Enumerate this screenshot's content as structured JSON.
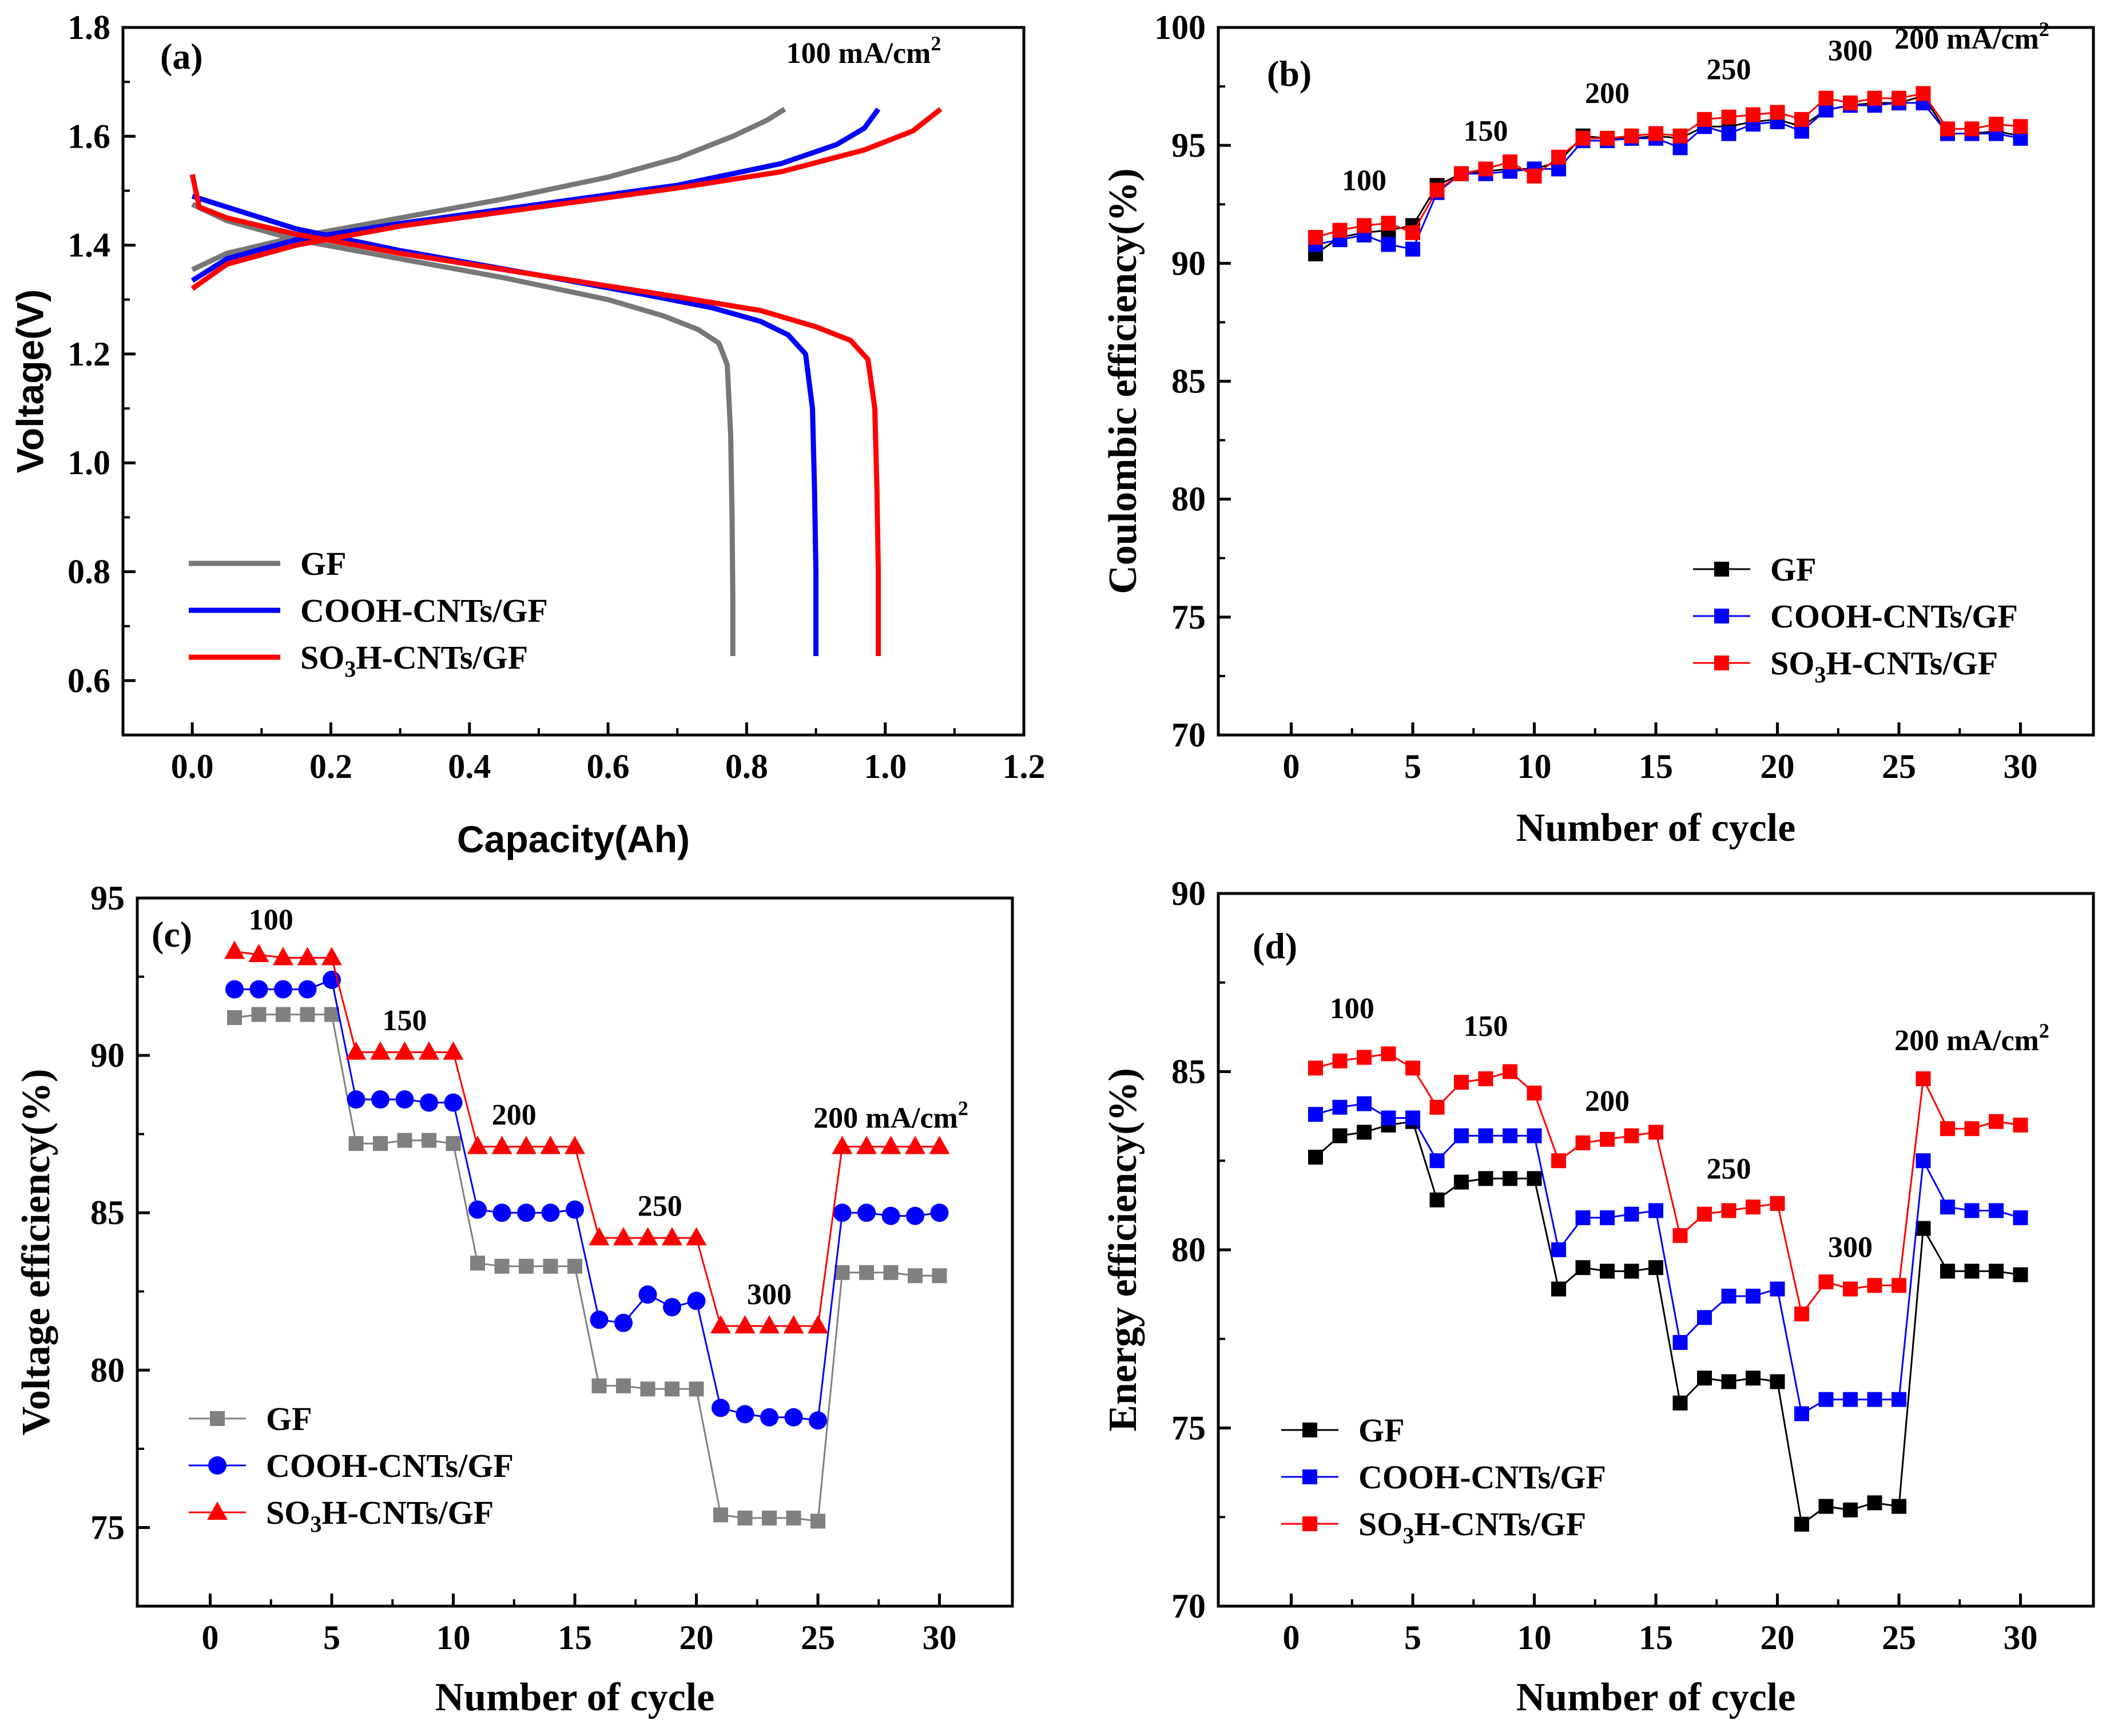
{
  "colors": {
    "GF": "#000000",
    "GF_a": "#777777",
    "GF_c": "#808080",
    "COOH": "#0000ff",
    "SO3H": "#ff0000"
  },
  "chart_data": [
    {
      "id": "a",
      "type": "line",
      "panel_label": "(a)",
      "xlabel": "Capacity(Ah)",
      "ylabel": "Voltage(V)",
      "xlim": [
        -0.1,
        1.2
      ],
      "ylim": [
        0.5,
        1.8
      ],
      "xticks": [
        "0.0",
        "0.2",
        "0.4",
        "0.6",
        "0.8",
        "1.0",
        "1.2"
      ],
      "yticks": [
        "0.6",
        "0.8",
        "1.0",
        "1.2",
        "1.4",
        "1.6",
        "1.8"
      ],
      "annotations": [
        {
          "text": "100 mA/cm",
          "sup": "2"
        }
      ],
      "legend": [
        "GF",
        "COOH-CNTs/GF",
        "SO3H-CNTs/GF"
      ],
      "series": [
        {
          "name": "GF",
          "color_key": "GF_a",
          "segments": [
            [
              [
                0,
                1.355
              ],
              [
                0.05,
                1.385
              ],
              [
                0.15,
                1.415
              ],
              [
                0.3,
                1.45
              ],
              [
                0.45,
                1.485
              ],
              [
                0.6,
                1.525
              ],
              [
                0.7,
                1.56
              ],
              [
                0.78,
                1.6
              ],
              [
                0.83,
                1.63
              ],
              [
                0.855,
                1.65
              ]
            ],
            [
              [
                0,
                1.475
              ],
              [
                0.05,
                1.445
              ],
              [
                0.15,
                1.41
              ],
              [
                0.3,
                1.375
              ],
              [
                0.45,
                1.34
              ],
              [
                0.6,
                1.3
              ],
              [
                0.68,
                1.27
              ],
              [
                0.73,
                1.245
              ],
              [
                0.76,
                1.22
              ],
              [
                0.772,
                1.18
              ],
              [
                0.777,
                1.05
              ],
              [
                0.779,
                0.9
              ],
              [
                0.78,
                0.75
              ],
              [
                0.78,
                0.645
              ]
            ]
          ]
        },
        {
          "name": "COOH-CNTs/GF",
          "color_key": "COOH",
          "segments": [
            [
              [
                0,
                1.335
              ],
              [
                0.05,
                1.375
              ],
              [
                0.15,
                1.41
              ],
              [
                0.3,
                1.44
              ],
              [
                0.5,
                1.475
              ],
              [
                0.7,
                1.51
              ],
              [
                0.85,
                1.55
              ],
              [
                0.93,
                1.585
              ],
              [
                0.97,
                1.615
              ],
              [
                0.99,
                1.65
              ]
            ],
            [
              [
                0,
                1.49
              ],
              [
                0.05,
                1.47
              ],
              [
                0.15,
                1.43
              ],
              [
                0.3,
                1.39
              ],
              [
                0.5,
                1.345
              ],
              [
                0.65,
                1.31
              ],
              [
                0.75,
                1.285
              ],
              [
                0.82,
                1.26
              ],
              [
                0.86,
                1.235
              ],
              [
                0.885,
                1.2
              ],
              [
                0.895,
                1.1
              ],
              [
                0.898,
                0.95
              ],
              [
                0.9,
                0.8
              ],
              [
                0.9,
                0.645
              ]
            ]
          ]
        },
        {
          "name": "SO3H-CNTs/GF",
          "color_key": "SO3H",
          "segments": [
            [
              [
                0,
                1.32
              ],
              [
                0.05,
                1.365
              ],
              [
                0.15,
                1.4
              ],
              [
                0.3,
                1.435
              ],
              [
                0.5,
                1.47
              ],
              [
                0.7,
                1.505
              ],
              [
                0.85,
                1.535
              ],
              [
                0.97,
                1.575
              ],
              [
                1.04,
                1.61
              ],
              [
                1.08,
                1.65
              ]
            ],
            [
              [
                0,
                1.53
              ],
              [
                0.01,
                1.47
              ],
              [
                0.05,
                1.45
              ],
              [
                0.15,
                1.42
              ],
              [
                0.3,
                1.385
              ],
              [
                0.5,
                1.345
              ],
              [
                0.7,
                1.305
              ],
              [
                0.82,
                1.28
              ],
              [
                0.9,
                1.25
              ],
              [
                0.95,
                1.225
              ],
              [
                0.975,
                1.19
              ],
              [
                0.985,
                1.1
              ],
              [
                0.988,
                0.95
              ],
              [
                0.99,
                0.8
              ],
              [
                0.99,
                0.645
              ]
            ]
          ]
        }
      ]
    },
    {
      "id": "b",
      "type": "line",
      "panel_label": "(b)",
      "xlabel": "Number of cycle",
      "ylabel": "Coulombic efficiency(%)",
      "xlim": [
        -3,
        33
      ],
      "ylim": [
        70,
        100
      ],
      "xticks": [
        "0",
        "5",
        "10",
        "15",
        "20",
        "25",
        "30"
      ],
      "yticks": [
        "70",
        "75",
        "80",
        "85",
        "90",
        "95",
        "100"
      ],
      "annotations": [
        {
          "text": "100",
          "x": 3,
          "y": 93.1
        },
        {
          "text": "150",
          "x": 8,
          "y": 95.2
        },
        {
          "text": "200",
          "x": 13,
          "y": 96.8
        },
        {
          "text": "250",
          "x": 18,
          "y": 97.8
        },
        {
          "text": "300",
          "x": 23,
          "y": 98.6
        },
        {
          "text": "200 mA/cm",
          "sup": "2",
          "x": 28,
          "y": 99.1
        }
      ],
      "legend": [
        "GF",
        "COOH-CNTs/GF",
        "SO3H-CNTs/GF"
      ],
      "x": [
        1,
        2,
        3,
        4,
        5,
        6,
        7,
        8,
        9,
        10,
        11,
        12,
        13,
        14,
        15,
        16,
        17,
        18,
        19,
        20,
        21,
        22,
        23,
        24,
        25,
        26,
        27,
        28,
        29,
        30
      ],
      "series": [
        {
          "name": "GF",
          "color_key": "GF",
          "values": [
            90.4,
            91.1,
            91.3,
            91.4,
            91.6,
            93.3,
            93.8,
            93.9,
            94.0,
            94.0,
            94.3,
            95.4,
            95.3,
            95.3,
            95.4,
            95.3,
            95.8,
            95.8,
            96.0,
            96.1,
            95.8,
            96.5,
            96.7,
            96.8,
            96.8,
            97.1,
            95.5,
            95.5,
            95.6,
            95.4
          ],
          "marker": "square"
        },
        {
          "name": "COOH-CNTs/GF",
          "color_key": "COOH",
          "values": [
            90.8,
            91.0,
            91.2,
            90.8,
            90.6,
            93.0,
            93.8,
            93.8,
            93.9,
            94.0,
            94.0,
            95.2,
            95.2,
            95.3,
            95.3,
            94.9,
            95.8,
            95.5,
            95.9,
            96.0,
            95.6,
            96.5,
            96.7,
            96.7,
            96.8,
            96.8,
            95.5,
            95.5,
            95.5,
            95.3
          ],
          "marker": "square"
        },
        {
          "name": "SO3H-CNTs/GF",
          "color_key": "SO3H",
          "values": [
            91.1,
            91.4,
            91.6,
            91.7,
            91.3,
            93.1,
            93.8,
            94.0,
            94.3,
            93.7,
            94.5,
            95.3,
            95.3,
            95.4,
            95.5,
            95.4,
            96.1,
            96.2,
            96.3,
            96.4,
            96.1,
            97.0,
            96.8,
            97.0,
            97.0,
            97.2,
            95.7,
            95.7,
            95.9,
            95.8
          ],
          "marker": "square"
        }
      ]
    },
    {
      "id": "c",
      "type": "line",
      "panel_label": "(c)",
      "xlabel": "Number of cycle",
      "ylabel": "Voltage efficiency(%)",
      "xlim": [
        -3,
        33
      ],
      "ylim": [
        72.5,
        95
      ],
      "xticks": [
        "0",
        "5",
        "10",
        "15",
        "20",
        "25",
        "30"
      ],
      "yticks": [
        "75",
        "80",
        "85",
        "90",
        "95"
      ],
      "annotations": [
        {
          "text": "100",
          "x": 2.5,
          "y": 94.0
        },
        {
          "text": "150",
          "x": 8,
          "y": 90.8
        },
        {
          "text": "200",
          "x": 12.5,
          "y": 87.8
        },
        {
          "text": "250",
          "x": 18.5,
          "y": 84.9
        },
        {
          "text": "300",
          "x": 23,
          "y": 82.1
        },
        {
          "text": "200 mA/cm",
          "sup": "2",
          "x": 28,
          "y": 87.7
        }
      ],
      "legend": [
        "GF",
        "COOH-CNTs/GF",
        "SO3H-CNTs/GF"
      ],
      "x": [
        1,
        2,
        3,
        4,
        5,
        6,
        7,
        8,
        9,
        10,
        11,
        12,
        13,
        14,
        15,
        16,
        17,
        18,
        19,
        20,
        21,
        22,
        23,
        24,
        25,
        26,
        27,
        28,
        29,
        30
      ],
      "series": [
        {
          "name": "GF",
          "color_key": "GF_c",
          "values": [
            91.2,
            91.3,
            91.3,
            91.3,
            91.3,
            87.2,
            87.2,
            87.3,
            87.3,
            87.2,
            83.4,
            83.3,
            83.3,
            83.3,
            83.3,
            79.5,
            79.5,
            79.4,
            79.4,
            79.4,
            75.4,
            75.3,
            75.3,
            75.3,
            75.2,
            83.1,
            83.1,
            83.1,
            83.0,
            83.0
          ],
          "marker": "square"
        },
        {
          "name": "COOH-CNTs/GF",
          "color_key": "COOH",
          "values": [
            92.1,
            92.1,
            92.1,
            92.1,
            92.4,
            88.6,
            88.6,
            88.6,
            88.5,
            88.5,
            85.1,
            85.0,
            85.0,
            85.0,
            85.1,
            81.6,
            81.5,
            82.4,
            82.0,
            82.2,
            78.8,
            78.6,
            78.5,
            78.5,
            78.4,
            85.0,
            85.0,
            84.9,
            84.9,
            85.0
          ],
          "marker": "circle"
        },
        {
          "name": "SO3H-CNTs/GF",
          "color_key": "SO3H",
          "values": [
            93.3,
            93.2,
            93.1,
            93.1,
            93.1,
            90.1,
            90.1,
            90.1,
            90.1,
            90.1,
            87.1,
            87.1,
            87.1,
            87.1,
            87.1,
            84.2,
            84.2,
            84.2,
            84.2,
            84.2,
            81.4,
            81.4,
            81.4,
            81.4,
            81.4,
            87.1,
            87.1,
            87.1,
            87.1,
            87.1
          ],
          "marker": "triangle"
        }
      ]
    },
    {
      "id": "d",
      "type": "line",
      "panel_label": "(d)",
      "xlabel": "Number of cycle",
      "ylabel": "Energy efficiency(%)",
      "xlim": [
        -3,
        33
      ],
      "ylim": [
        70,
        90
      ],
      "xticks": [
        "0",
        "5",
        "10",
        "15",
        "20",
        "25",
        "30"
      ],
      "yticks": [
        "70",
        "75",
        "80",
        "85",
        "90"
      ],
      "annotations": [
        {
          "text": "100",
          "x": 2.5,
          "y": 86.5
        },
        {
          "text": "150",
          "x": 8,
          "y": 86.0
        },
        {
          "text": "200",
          "x": 13,
          "y": 83.9
        },
        {
          "text": "250",
          "x": 18,
          "y": 82.0
        },
        {
          "text": "300",
          "x": 23,
          "y": 79.8
        },
        {
          "text": "200 mA/cm",
          "sup": "2",
          "x": 28,
          "y": 85.6
        }
      ],
      "legend": [
        "GF",
        "COOH-CNTs/GF",
        "SO3H-CNTs/GF"
      ],
      "x": [
        1,
        2,
        3,
        4,
        5,
        6,
        7,
        8,
        9,
        10,
        11,
        12,
        13,
        14,
        15,
        16,
        17,
        18,
        19,
        20,
        21,
        22,
        23,
        24,
        25,
        26,
        27,
        28,
        29,
        30
      ],
      "series": [
        {
          "name": "GF",
          "color_key": "GF",
          "values": [
            82.6,
            83.2,
            83.3,
            83.5,
            83.6,
            81.4,
            81.9,
            82.0,
            82.0,
            82.0,
            78.9,
            79.5,
            79.4,
            79.4,
            79.5,
            75.7,
            76.4,
            76.3,
            76.4,
            76.3,
            72.3,
            72.8,
            72.7,
            72.9,
            72.8,
            80.6,
            79.4,
            79.4,
            79.4,
            79.3
          ],
          "marker": "square"
        },
        {
          "name": "COOH-CNTs/GF",
          "color_key": "COOH",
          "values": [
            83.8,
            84.0,
            84.1,
            83.7,
            83.7,
            82.5,
            83.2,
            83.2,
            83.2,
            83.2,
            80.0,
            80.9,
            80.9,
            81.0,
            81.1,
            77.4,
            78.1,
            78.7,
            78.7,
            78.9,
            75.4,
            75.8,
            75.8,
            75.8,
            75.8,
            82.5,
            81.2,
            81.1,
            81.1,
            80.9
          ],
          "marker": "square"
        },
        {
          "name": "SO3H-CNTs/GF",
          "color_key": "SO3H",
          "values": [
            85.1,
            85.3,
            85.4,
            85.5,
            85.1,
            84.0,
            84.7,
            84.8,
            85.0,
            84.4,
            82.5,
            83.0,
            83.1,
            83.2,
            83.3,
            80.4,
            81.0,
            81.1,
            81.2,
            81.3,
            78.2,
            79.1,
            78.9,
            79.0,
            79.0,
            84.8,
            83.4,
            83.4,
            83.6,
            83.5
          ],
          "marker": "square"
        }
      ]
    }
  ]
}
